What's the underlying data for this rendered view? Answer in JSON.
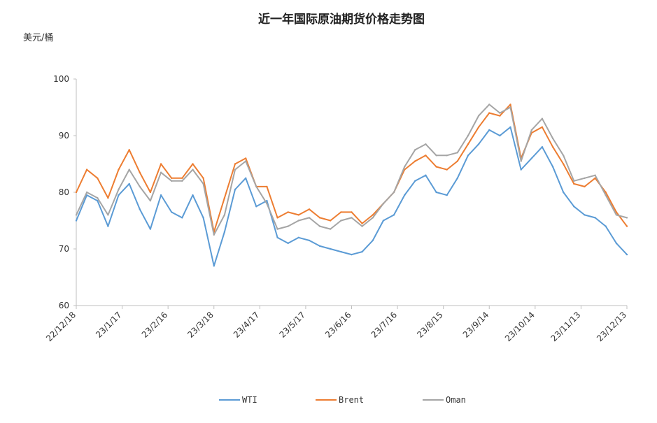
{
  "chart_data": {
    "type": "line",
    "title": "近一年国际原油期货价格走势图",
    "ylabel": "美元/桶",
    "xlabel": "",
    "ylim": [
      60,
      100
    ],
    "yticks": [
      60,
      70,
      80,
      90,
      100
    ],
    "xtick_labels": [
      "22/12/18",
      "23/1/17",
      "23/2/16",
      "23/3/18",
      "23/4/17",
      "23/5/17",
      "23/6/16",
      "23/7/16",
      "23/8/15",
      "23/9/14",
      "23/10/14",
      "23/11/13",
      "23/12/13"
    ],
    "legend_position": "bottom",
    "grid": false,
    "x": [
      "22/12/18",
      "22/12/25",
      "23/1/1",
      "23/1/8",
      "23/1/15",
      "23/1/22",
      "23/1/29",
      "23/2/5",
      "23/2/12",
      "23/2/19",
      "23/2/26",
      "23/3/5",
      "23/3/12",
      "23/3/19",
      "23/3/26",
      "23/4/2",
      "23/4/9",
      "23/4/16",
      "23/4/23",
      "23/4/30",
      "23/5/7",
      "23/5/14",
      "23/5/21",
      "23/5/28",
      "23/6/4",
      "23/6/11",
      "23/6/18",
      "23/6/25",
      "23/7/2",
      "23/7/9",
      "23/7/16",
      "23/7/23",
      "23/7/30",
      "23/8/6",
      "23/8/13",
      "23/8/20",
      "23/8/27",
      "23/9/3",
      "23/9/10",
      "23/9/17",
      "23/9/24",
      "23/10/1",
      "23/10/8",
      "23/10/15",
      "23/10/22",
      "23/10/29",
      "23/11/5",
      "23/11/12",
      "23/11/19",
      "23/11/26",
      "23/12/3",
      "23/12/10",
      "23/12/13"
    ],
    "series": [
      {
        "name": "WTI",
        "color": "#5b9bd5",
        "values": [
          75.0,
          79.5,
          78.5,
          74.0,
          79.5,
          81.5,
          77.0,
          73.5,
          79.5,
          76.5,
          75.5,
          79.5,
          75.5,
          67.0,
          73.0,
          80.5,
          82.5,
          77.5,
          78.5,
          72.0,
          71.0,
          72.0,
          71.5,
          70.5,
          70.0,
          69.5,
          69.0,
          69.5,
          71.5,
          75.0,
          76.0,
          79.5,
          82.0,
          83.0,
          80.0,
          79.5,
          82.5,
          86.5,
          88.5,
          91.0,
          90.0,
          91.5,
          84.0,
          86.0,
          88.0,
          84.5,
          80.0,
          77.5,
          76.0,
          75.5,
          74.0,
          71.0,
          69.0
        ]
      },
      {
        "name": "Brent",
        "color": "#ed7d31",
        "values": [
          80.0,
          84.0,
          82.5,
          79.0,
          84.0,
          87.5,
          83.5,
          80.0,
          85.0,
          82.5,
          82.5,
          85.0,
          82.5,
          73.0,
          79.0,
          85.0,
          86.0,
          81.0,
          81.0,
          75.5,
          76.5,
          76.0,
          77.0,
          75.5,
          75.0,
          76.5,
          76.5,
          74.5,
          76.0,
          78.0,
          80.0,
          84.0,
          85.5,
          86.5,
          84.5,
          84.0,
          85.5,
          88.5,
          91.5,
          94.0,
          93.5,
          95.5,
          86.0,
          90.5,
          91.5,
          88.0,
          85.0,
          81.5,
          81.0,
          82.5,
          80.0,
          76.5,
          74.0
        ]
      },
      {
        "name": "Oman",
        "color": "#a5a5a5",
        "values": [
          76.0,
          80.0,
          79.0,
          76.0,
          80.5,
          84.0,
          81.0,
          78.5,
          83.5,
          82.0,
          82.0,
          84.0,
          81.5,
          72.5,
          76.0,
          84.0,
          85.5,
          81.0,
          78.0,
          73.5,
          74.0,
          75.0,
          75.5,
          74.0,
          73.5,
          75.0,
          75.5,
          74.0,
          75.5,
          78.0,
          80.0,
          84.5,
          87.5,
          88.5,
          86.5,
          86.5,
          87.0,
          90.0,
          93.5,
          95.5,
          94.0,
          95.0,
          85.5,
          91.0,
          93.0,
          89.5,
          86.5,
          82.0,
          82.5,
          83.0,
          79.5,
          76.0,
          75.5
        ]
      }
    ]
  }
}
